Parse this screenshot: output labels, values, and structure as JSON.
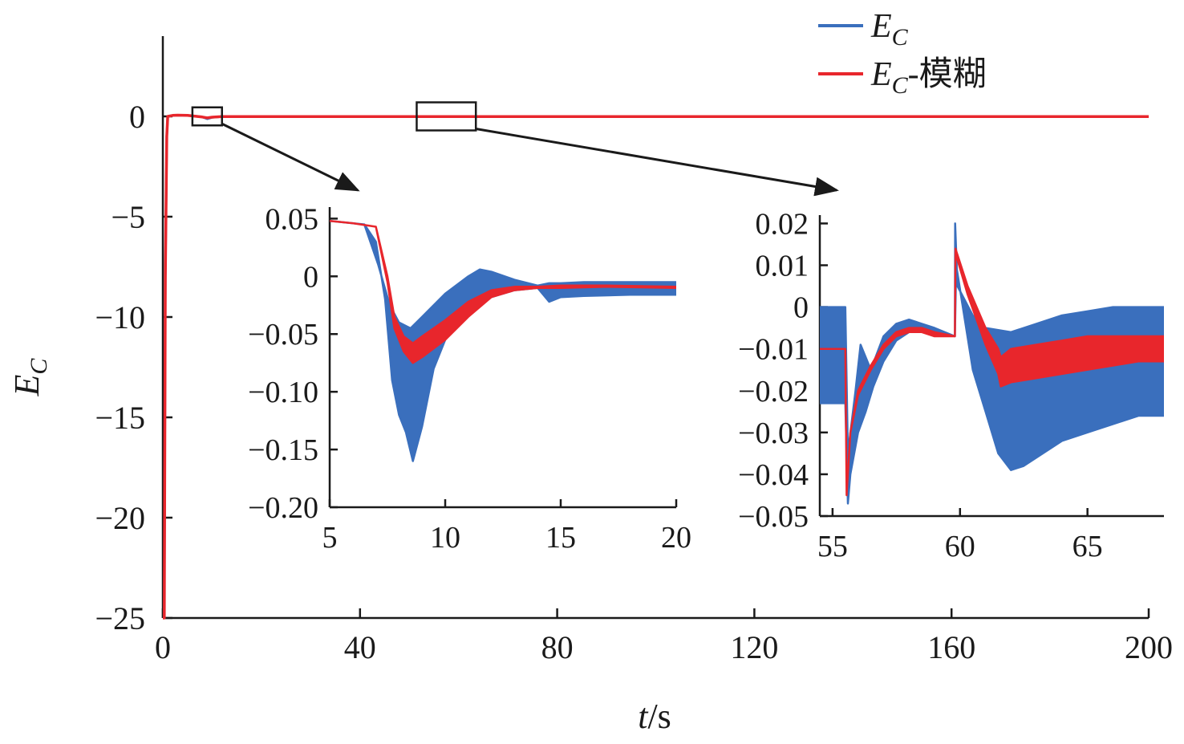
{
  "chart_data": {
    "type": "line",
    "title": "",
    "xlabel": "t/s",
    "xlabel_var": "t",
    "xlabel_unit": "/s",
    "ylabel": "E_C",
    "ylabel_main": "E",
    "ylabel_sub": "C",
    "colors": {
      "blue": "#3a6fbd",
      "red": "#e8262c",
      "axis": "#1a1a1a"
    },
    "legend": {
      "placement": "top-right",
      "entries": [
        {
          "name": "E_C",
          "main": "E",
          "sub": "C",
          "suffix": "",
          "color": "#3a6fbd"
        },
        {
          "name": "E_C-模糊",
          "main": "E",
          "sub": "C",
          "suffix": "-模糊",
          "color": "#e8262c"
        }
      ]
    },
    "main": {
      "xlim": [
        0,
        200
      ],
      "ylim": [
        -25,
        4
      ],
      "xticks": [
        0,
        40,
        80,
        120,
        160,
        200
      ],
      "xtick_labels": [
        "0",
        "40",
        "80",
        "120",
        "160",
        "200"
      ],
      "yticks": [
        0,
        -5,
        -10,
        -15,
        -20,
        -25
      ],
      "ytick_labels": [
        "0",
        "−5",
        "−10",
        "−15",
        "−20",
        "−25"
      ],
      "series": [
        {
          "name": "E_C",
          "color": "#3a6fbd",
          "x": [
            0,
            0.3,
            0.5,
            0.8,
            1,
            2,
            3,
            5,
            8,
            9,
            10,
            12,
            20,
            60,
            120,
            200
          ],
          "y": [
            -25,
            -25,
            -8,
            -1,
            0,
            0.05,
            0.06,
            0.05,
            -0.03,
            -0.12,
            -0.05,
            -0.01,
            -0.01,
            -0.01,
            -0.01,
            -0.01
          ]
        },
        {
          "name": "E_C-模糊",
          "color": "#e8262c",
          "x": [
            0,
            0.3,
            0.5,
            0.8,
            1,
            2,
            3,
            5,
            8,
            9,
            10,
            12,
            20,
            60,
            120,
            200
          ],
          "y": [
            -25,
            -25,
            -8,
            -1,
            0,
            0.05,
            0.06,
            0.05,
            -0.03,
            -0.07,
            -0.04,
            -0.01,
            -0.01,
            -0.01,
            -0.01,
            -0.01
          ]
        }
      ],
      "zoom_boxes": [
        {
          "xrange": [
            6,
            12
          ],
          "yrange": [
            -0.45,
            0.45
          ]
        },
        {
          "xrange": [
            51.5,
            63.5
          ],
          "yrange": [
            -0.7,
            0.7
          ]
        }
      ]
    },
    "inset1": {
      "xlim": [
        5,
        20
      ],
      "ylim": [
        -0.2,
        0.06
      ],
      "xticks": [
        5,
        10,
        15,
        20
      ],
      "xtick_labels": [
        "5",
        "10",
        "15",
        "20"
      ],
      "yticks": [
        0.05,
        0,
        -0.05,
        -0.1,
        -0.15,
        -0.2
      ],
      "ytick_labels": [
        "0.05",
        "0",
        "−0.05",
        "−0.10",
        "−0.15",
        "−0.20"
      ],
      "series": [
        {
          "name": "E_C",
          "color": "#3a6fbd",
          "upper_x": [
            5,
            6.5,
            7.1,
            7.6,
            8,
            8.5,
            9,
            10,
            11,
            11.5,
            12,
            13,
            14,
            14.5,
            15,
            16,
            18,
            20
          ],
          "upper_y": [
            0.048,
            0.045,
            0.01,
            -0.025,
            -0.04,
            -0.045,
            -0.035,
            -0.015,
            0,
            0.006,
            0.004,
            -0.003,
            -0.008,
            -0.006,
            -0.006,
            -0.005,
            -0.005,
            -0.005
          ],
          "lower_x": [
            5,
            6.5,
            7,
            7.4,
            7.7,
            8,
            8.3,
            8.6,
            9,
            9.5,
            10,
            11,
            12,
            13,
            14,
            14.5,
            15,
            16,
            18,
            20
          ],
          "lower_y": [
            0.048,
            0.045,
            0.03,
            -0.02,
            -0.09,
            -0.12,
            -0.135,
            -0.16,
            -0.13,
            -0.08,
            -0.055,
            -0.03,
            -0.018,
            -0.012,
            -0.01,
            -0.022,
            -0.018,
            -0.017,
            -0.016,
            -0.016
          ]
        },
        {
          "name": "E_C-模糊",
          "color": "#e8262c",
          "upper_x": [
            5,
            6,
            7,
            7.5,
            7.8,
            8.2,
            8.6,
            9,
            10,
            11,
            12,
            13,
            14,
            15,
            17,
            20
          ],
          "upper_y": [
            0.048,
            0.046,
            0.043,
            0,
            -0.035,
            -0.052,
            -0.058,
            -0.052,
            -0.038,
            -0.022,
            -0.012,
            -0.009,
            -0.009,
            -0.008,
            -0.008,
            -0.009
          ],
          "lower_x": [
            5,
            6,
            7,
            7.5,
            7.8,
            8.2,
            8.6,
            9,
            10,
            11,
            12,
            13,
            14,
            15,
            17,
            20
          ],
          "lower_y": [
            0.048,
            0.046,
            0.043,
            -0.005,
            -0.045,
            -0.065,
            -0.075,
            -0.07,
            -0.055,
            -0.035,
            -0.018,
            -0.012,
            -0.01,
            -0.01,
            -0.009,
            -0.01
          ]
        }
      ]
    },
    "inset2": {
      "xlim": [
        54.5,
        68
      ],
      "ylim": [
        -0.05,
        0.022
      ],
      "xticks": [
        55,
        60,
        65
      ],
      "xtick_labels": [
        "55",
        "60",
        "65"
      ],
      "yticks": [
        0.02,
        0.01,
        0,
        -0.01,
        -0.02,
        -0.03,
        -0.04,
        -0.05
      ],
      "ytick_labels": [
        "0.02",
        "0.01",
        "0",
        "−0.01",
        "−0.02",
        "−0.03",
        "−0.04",
        "−0.05"
      ],
      "series": [
        {
          "name": "E_C",
          "color": "#3a6fbd",
          "upper_x": [
            54.5,
            55.5,
            55.6,
            55.9,
            56.1,
            56.5,
            57,
            57.5,
            58,
            58.5,
            59,
            59.8,
            59.81,
            59.9,
            60.5,
            61,
            62,
            63,
            64,
            65,
            66,
            67,
            68
          ],
          "upper_y": [
            0,
            0,
            -0.035,
            -0.02,
            -0.009,
            -0.015,
            -0.007,
            -0.004,
            -0.003,
            -0.004,
            -0.005,
            -0.007,
            0.02,
            0.005,
            -0.002,
            -0.005,
            -0.006,
            -0.004,
            -0.002,
            -0.001,
            0,
            0,
            0
          ],
          "lower_x": [
            54.5,
            55.5,
            55.6,
            55.7,
            56,
            56.3,
            56.6,
            57,
            57.5,
            58,
            58.5,
            59,
            59.8,
            59.85,
            60.5,
            61,
            61.5,
            62,
            62.5,
            63,
            64,
            65,
            66,
            67,
            68
          ],
          "lower_y": [
            -0.023,
            -0.023,
            -0.047,
            -0.04,
            -0.03,
            -0.025,
            -0.019,
            -0.013,
            -0.008,
            -0.006,
            -0.006,
            -0.006,
            -0.007,
            0.01,
            -0.015,
            -0.025,
            -0.035,
            -0.039,
            -0.038,
            -0.036,
            -0.032,
            -0.03,
            -0.028,
            -0.026,
            -0.026
          ]
        },
        {
          "name": "E_C-模糊",
          "color": "#e8262c",
          "upper_x": [
            54.5,
            55.5,
            55.55,
            55.7,
            56,
            56.5,
            57,
            57.5,
            58,
            58.5,
            59,
            59.8,
            59.82,
            60.3,
            61,
            61.5,
            61.6,
            62,
            63,
            64,
            65,
            66,
            67,
            68
          ],
          "upper_y": [
            -0.01,
            -0.01,
            -0.045,
            -0.03,
            -0.02,
            -0.014,
            -0.009,
            -0.006,
            -0.005,
            -0.005,
            -0.006,
            -0.007,
            0.014,
            0.005,
            -0.005,
            -0.01,
            -0.012,
            -0.01,
            -0.009,
            -0.008,
            -0.007,
            -0.007,
            -0.007,
            -0.007
          ],
          "lower_x": [
            54.5,
            55.5,
            55.55,
            55.7,
            56,
            56.5,
            57,
            57.5,
            58,
            58.5,
            59,
            59.8,
            59.82,
            60.3,
            61,
            61.5,
            61.6,
            62,
            63,
            64,
            65,
            66,
            67,
            68
          ],
          "lower_y": [
            -0.01,
            -0.01,
            -0.045,
            -0.03,
            -0.021,
            -0.015,
            -0.01,
            -0.007,
            -0.006,
            -0.006,
            -0.007,
            -0.007,
            0.013,
            0.003,
            -0.009,
            -0.016,
            -0.019,
            -0.018,
            -0.017,
            -0.016,
            -0.015,
            -0.014,
            -0.013,
            -0.013
          ]
        }
      ]
    }
  }
}
